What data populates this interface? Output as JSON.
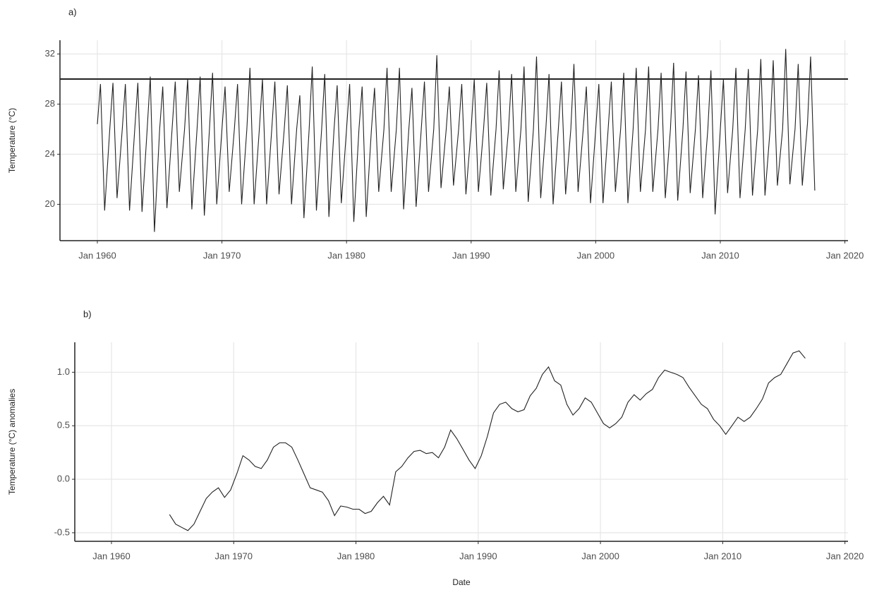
{
  "chart_data": [
    {
      "type": "line",
      "panel": "a)",
      "ylabel": "Temperature (°C)",
      "xlim": [
        "1957-01",
        "2020-04"
      ],
      "ylim": [
        17.1,
        33.1
      ],
      "xticks": [
        {
          "value": "1960-01",
          "label": "Jan 1960"
        },
        {
          "value": "1970-01",
          "label": "Jan 1970"
        },
        {
          "value": "1980-01",
          "label": "Jan 1980"
        },
        {
          "value": "1990-01",
          "label": "Jan 1990"
        },
        {
          "value": "2000-01",
          "label": "Jan 2000"
        },
        {
          "value": "2010-01",
          "label": "Jan 2010"
        },
        {
          "value": "2020-01",
          "label": "Jan 2020"
        }
      ],
      "yticks": [
        20,
        24,
        28,
        32
      ],
      "grid": true,
      "hline": 30,
      "series": [
        {
          "color": "#222222",
          "x": [
            "1960-01",
            "1960-04",
            "1960-08",
            "1961-01",
            "1961-04",
            "1961-08",
            "1962-01",
            "1962-04",
            "1962-08",
            "1963-01",
            "1963-04",
            "1963-08",
            "1964-01",
            "1964-04",
            "1964-08",
            "1965-01",
            "1965-04",
            "1965-08",
            "1966-01",
            "1966-04",
            "1966-08",
            "1967-01",
            "1967-04",
            "1967-08",
            "1968-01",
            "1968-04",
            "1968-08",
            "1969-01",
            "1969-04",
            "1969-08",
            "1970-01",
            "1970-04",
            "1970-08",
            "1971-01",
            "1971-04",
            "1971-08",
            "1972-01",
            "1972-04",
            "1972-08",
            "1973-01",
            "1973-04",
            "1973-08",
            "1974-01",
            "1974-04",
            "1974-08",
            "1975-01",
            "1975-04",
            "1975-08",
            "1976-01",
            "1976-04",
            "1976-08",
            "1977-01",
            "1977-04",
            "1977-08",
            "1978-01",
            "1978-04",
            "1978-08",
            "1979-01",
            "1979-04",
            "1979-08",
            "1980-01",
            "1980-04",
            "1980-08",
            "1981-01",
            "1981-04",
            "1981-08",
            "1982-01",
            "1982-04",
            "1982-08",
            "1983-01",
            "1983-04",
            "1983-08",
            "1984-01",
            "1984-04",
            "1984-08",
            "1985-01",
            "1985-04",
            "1985-08",
            "1986-01",
            "1986-04",
            "1986-08",
            "1987-01",
            "1987-04",
            "1987-08",
            "1988-01",
            "1988-04",
            "1988-08",
            "1989-01",
            "1989-04",
            "1989-08",
            "1990-01",
            "1990-04",
            "1990-08",
            "1991-01",
            "1991-04",
            "1991-08",
            "1992-01",
            "1992-04",
            "1992-08",
            "1993-01",
            "1993-04",
            "1993-08",
            "1994-01",
            "1994-04",
            "1994-08",
            "1995-01",
            "1995-04",
            "1995-08",
            "1996-01",
            "1996-04",
            "1996-08",
            "1997-01",
            "1997-04",
            "1997-08",
            "1998-01",
            "1998-04",
            "1998-08",
            "1999-01",
            "1999-04",
            "1999-08",
            "2000-01",
            "2000-04",
            "2000-08",
            "2001-01",
            "2001-04",
            "2001-08",
            "2002-01",
            "2002-04",
            "2002-08",
            "2003-01",
            "2003-04",
            "2003-08",
            "2004-01",
            "2004-04",
            "2004-08",
            "2005-01",
            "2005-04",
            "2005-08",
            "2006-01",
            "2006-04",
            "2006-08",
            "2007-01",
            "2007-04",
            "2007-08",
            "2008-01",
            "2008-04",
            "2008-08",
            "2009-01",
            "2009-04",
            "2009-08",
            "2010-01",
            "2010-04",
            "2010-08",
            "2011-01",
            "2011-04",
            "2011-08",
            "2012-01",
            "2012-04",
            "2012-08",
            "2013-01",
            "2013-04",
            "2013-08",
            "2014-01",
            "2014-04",
            "2014-08",
            "2015-01",
            "2015-04",
            "2015-08",
            "2016-01",
            "2016-04",
            "2016-08",
            "2017-01",
            "2017-04",
            "2017-08"
          ],
          "values": [
            26.4,
            29.6,
            19.5,
            26,
            29.7,
            20.5,
            26,
            29.6,
            19.5,
            26,
            29.7,
            19.4,
            26,
            30.2,
            17.8,
            26,
            29.4,
            19.7,
            26,
            29.8,
            21.0,
            26,
            30.0,
            19.6,
            26,
            30.2,
            19.1,
            26,
            30.5,
            20.0,
            26,
            29.4,
            21.0,
            26,
            29.6,
            20.0,
            26,
            30.9,
            20.0,
            26,
            30.0,
            20.0,
            26,
            29.8,
            20.8,
            26,
            29.5,
            20.0,
            26,
            28.7,
            18.9,
            26,
            31.0,
            19.5,
            26,
            30.4,
            19.0,
            26,
            29.5,
            20.1,
            26,
            29.6,
            18.6,
            26,
            29.4,
            19.0,
            26,
            29.3,
            21.0,
            26,
            30.9,
            21.0,
            26,
            30.9,
            19.6,
            26,
            29.3,
            19.8,
            26,
            29.8,
            21.0,
            26,
            31.9,
            21.3,
            26,
            29.4,
            21.5,
            26,
            29.6,
            20.8,
            26,
            30.0,
            21.0,
            26,
            29.7,
            20.7,
            26,
            30.7,
            21.2,
            26,
            30.4,
            21.0,
            26,
            31.0,
            20.2,
            26,
            31.8,
            20.5,
            26,
            30.4,
            20.0,
            26,
            29.8,
            20.8,
            26,
            31.2,
            21.0,
            26,
            29.4,
            20.1,
            26,
            29.6,
            20.1,
            26,
            29.8,
            21.0,
            26,
            30.5,
            20.1,
            26,
            30.9,
            21.0,
            26,
            31.0,
            21.0,
            26,
            30.5,
            20.5,
            26,
            31.3,
            20.3,
            26,
            30.6,
            20.9,
            26,
            30.3,
            20.5,
            26,
            30.7,
            19.2,
            26,
            30.0,
            20.9,
            26,
            30.9,
            20.5,
            26,
            30.8,
            20.7,
            26,
            31.6,
            20.7,
            26,
            31.5,
            21.5,
            26,
            32.4,
            21.6,
            26,
            31.2,
            21.5,
            26.5,
            31.8,
            21.1
          ]
        }
      ]
    },
    {
      "type": "line",
      "panel": "b)",
      "ylabel": "Temperature (°C) anomalies",
      "xlabel": "Date",
      "xlim": [
        "1957-01",
        "2020-04"
      ],
      "ylim": [
        -0.58,
        1.28
      ],
      "xticks": [
        {
          "value": "1960-01",
          "label": "Jan 1960"
        },
        {
          "value": "1970-01",
          "label": "Jan 1970"
        },
        {
          "value": "1980-01",
          "label": "Jan 1980"
        },
        {
          "value": "1990-01",
          "label": "Jan 1990"
        },
        {
          "value": "2000-01",
          "label": "Jan 2000"
        },
        {
          "value": "2010-01",
          "label": "Jan 2010"
        },
        {
          "value": "2020-01",
          "label": "Jan 2020"
        }
      ],
      "yticks": [
        -0.5,
        {
          "value": 0,
          "label": "0.0"
        },
        0.5,
        {
          "value": 1,
          "label": "1.0"
        }
      ],
      "grid": true,
      "series": [
        {
          "color": "#222222",
          "x": [
            "1964-10",
            "1965-04",
            "1965-10",
            "1966-04",
            "1966-10",
            "1967-04",
            "1967-10",
            "1968-04",
            "1968-10",
            "1969-04",
            "1969-10",
            "1970-04",
            "1970-10",
            "1971-04",
            "1971-10",
            "1972-04",
            "1972-10",
            "1973-04",
            "1973-10",
            "1974-04",
            "1974-10",
            "1975-04",
            "1975-10",
            "1976-04",
            "1976-10",
            "1977-04",
            "1977-10",
            "1978-04",
            "1978-10",
            "1979-04",
            "1979-10",
            "1980-04",
            "1980-10",
            "1981-04",
            "1981-10",
            "1982-04",
            "1982-10",
            "1983-04",
            "1983-10",
            "1984-04",
            "1984-10",
            "1985-04",
            "1985-10",
            "1986-04",
            "1986-10",
            "1987-04",
            "1987-10",
            "1988-04",
            "1988-10",
            "1989-04",
            "1989-10",
            "1990-04",
            "1990-10",
            "1991-04",
            "1991-10",
            "1992-04",
            "1992-10",
            "1993-04",
            "1993-10",
            "1994-04",
            "1994-10",
            "1995-04",
            "1995-10",
            "1996-04",
            "1996-10",
            "1997-04",
            "1997-10",
            "1998-04",
            "1998-10",
            "1999-04",
            "1999-10",
            "2000-04",
            "2000-10",
            "2001-04",
            "2001-10",
            "2002-04",
            "2002-10",
            "2003-04",
            "2003-10",
            "2004-04",
            "2004-10",
            "2005-04",
            "2005-10",
            "2006-04",
            "2006-10",
            "2007-04",
            "2007-10",
            "2008-04",
            "2008-10",
            "2009-04",
            "2009-10",
            "2010-04",
            "2010-10",
            "2011-04",
            "2011-10",
            "2012-04",
            "2012-10",
            "2013-04",
            "2013-10",
            "2014-04",
            "2014-10",
            "2015-04",
            "2015-10",
            "2016-04",
            "2016-10"
          ],
          "values": [
            -0.33,
            -0.42,
            -0.45,
            -0.48,
            -0.42,
            -0.3,
            -0.18,
            -0.12,
            -0.08,
            -0.17,
            -0.1,
            0.05,
            0.22,
            0.18,
            0.12,
            0.1,
            0.18,
            0.3,
            0.34,
            0.34,
            0.3,
            0.18,
            0.05,
            -0.08,
            -0.1,
            -0.12,
            -0.2,
            -0.34,
            -0.25,
            -0.26,
            -0.28,
            -0.28,
            -0.32,
            -0.3,
            -0.22,
            -0.16,
            -0.24,
            0.07,
            0.12,
            0.2,
            0.26,
            0.27,
            0.24,
            0.25,
            0.2,
            0.3,
            0.46,
            0.38,
            0.28,
            0.18,
            0.1,
            0.22,
            0.4,
            0.62,
            0.7,
            0.72,
            0.66,
            0.63,
            0.65,
            0.78,
            0.85,
            0.98,
            1.05,
            0.92,
            0.88,
            0.7,
            0.6,
            0.66,
            0.76,
            0.72,
            0.62,
            0.52,
            0.48,
            0.52,
            0.58,
            0.72,
            0.79,
            0.74,
            0.8,
            0.84,
            0.95,
            1.02,
            1.0,
            0.98,
            0.95,
            0.86,
            0.78,
            0.7,
            0.66,
            0.56,
            0.5,
            0.42,
            0.5,
            0.58,
            0.54,
            0.58,
            0.66,
            0.75,
            0.9,
            0.95,
            0.98,
            1.08,
            1.18,
            1.2,
            1.13
          ]
        }
      ]
    }
  ]
}
